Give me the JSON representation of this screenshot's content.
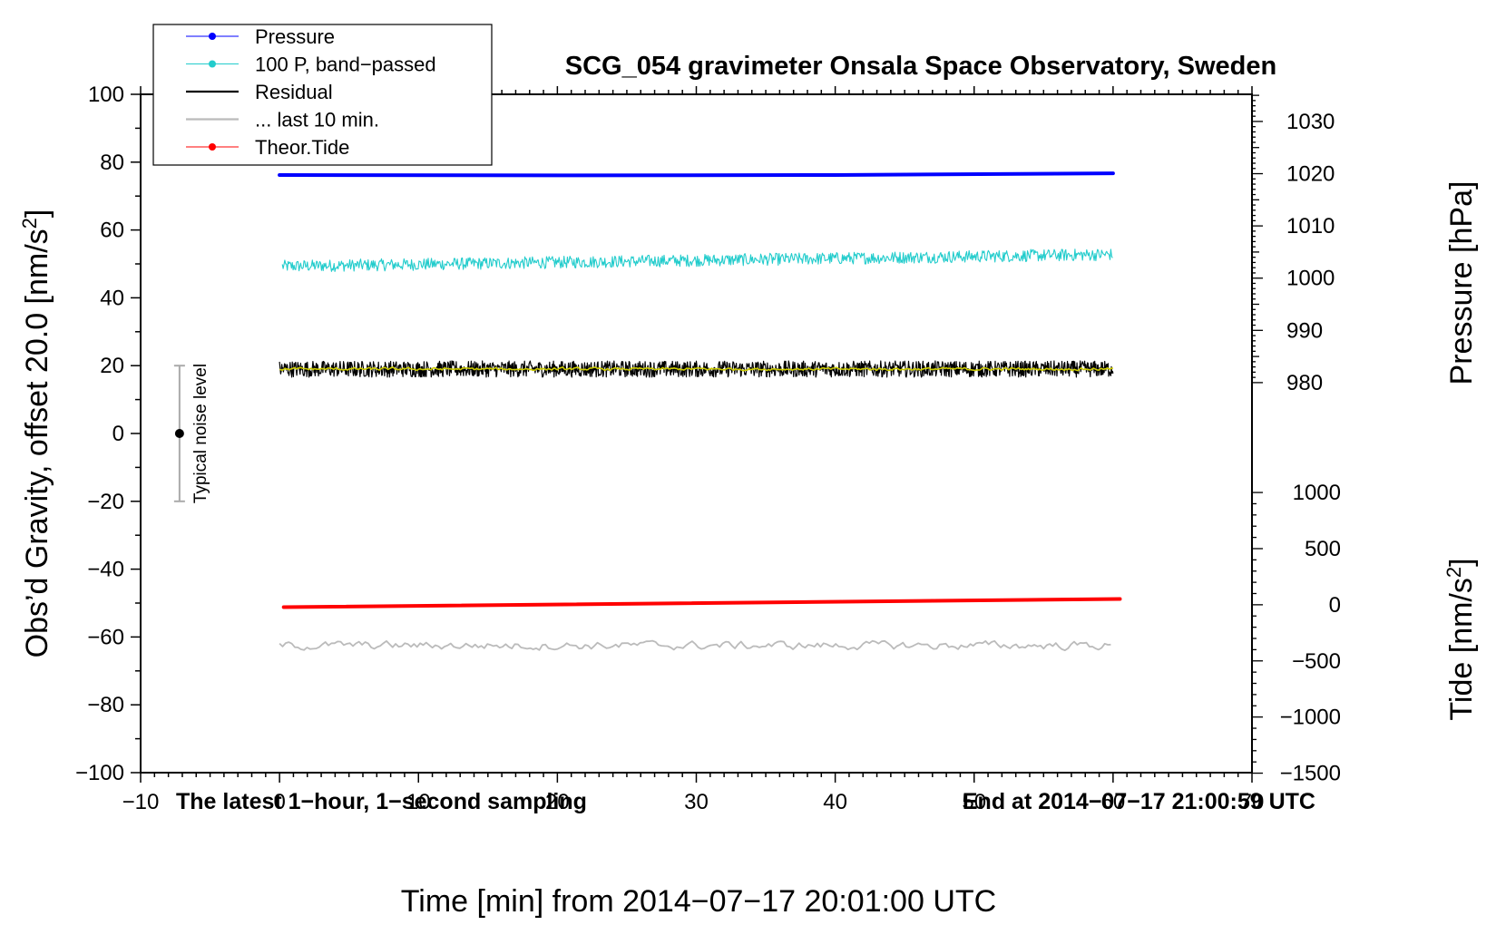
{
  "chart_data": {
    "type": "line",
    "title": "SCG_054 gravimeter Onsala Space Observatory, Sweden",
    "xlabel": "Time [min] from 2014−07−17 20:01:00 UTC",
    "ylabel_main": "Obs’d Gravity, offset 20.0 [nm/s",
    "ylabel_main_sup": "2",
    "ylabel_main_end": "]",
    "ylabel_pressure": "Pressure [hPa]",
    "ylabel_tide": "Tide [nm/s",
    "ylabel_tide_sup": "2",
    "ylabel_tide_end": "]",
    "xlim": [
      -10,
      70
    ],
    "ylim": [
      -100,
      100
    ],
    "x_ticks": [
      -10,
      0,
      10,
      20,
      30,
      40,
      50,
      60,
      70
    ],
    "x_tick_labels": [
      "−10",
      "0",
      "10",
      "20",
      "30",
      "40",
      "50",
      "60",
      "70"
    ],
    "y_ticks": [
      100,
      80,
      60,
      40,
      20,
      0,
      -20,
      -40,
      -60,
      -80,
      -100
    ],
    "y_tick_labels": [
      "100",
      "80",
      "60",
      "40",
      "20",
      "0",
      "−20",
      "−40",
      "−60",
      "−80",
      "−100"
    ],
    "pressure_axis": {
      "ticks": [
        1030,
        1020,
        1010,
        1000,
        990,
        980
      ],
      "tick_labels": [
        "1030",
        "1020",
        "1010",
        "1000",
        "990",
        "980"
      ],
      "gravity_at_1030": 92,
      "gravity_per_hpa": 1.54
    },
    "tide_axis": {
      "ticks": [
        1000,
        500,
        0,
        -500,
        -1000,
        -1500
      ],
      "tick_labels": [
        "1000",
        "500",
        "0",
        "−500",
        "−1000",
        "−1500"
      ],
      "gravity_at_zero": -50.5,
      "gravity_per_unit": 0.0331
    },
    "legend": {
      "position": "top-left",
      "entries": [
        {
          "label": "Pressure",
          "color": "#0000ff",
          "marker": true
        },
        {
          "label": "100 P, band−passed",
          "color": "#22cccc",
          "marker": true
        },
        {
          "label": "Residual",
          "color": "#000000",
          "marker": false
        },
        {
          "label": "... last 10 min.",
          "color": "#bbbbbb",
          "marker": false
        },
        {
          "label": "Theor.Tide",
          "color": "#ff0000",
          "marker": true
        }
      ]
    },
    "annotations": {
      "bottom_left": "The latest 1−hour, 1−second sampling",
      "bottom_right": "End at 2014−07−17 21:00:59 UTC",
      "noise_label": "Typical noise level"
    },
    "noise_bar": {
      "x": -7.2,
      "center": 0,
      "low": -20,
      "high": 20
    },
    "series": [
      {
        "name": "Pressure",
        "color": "#0000ff",
        "x": [
          0,
          20,
          40,
          60
        ],
        "y": [
          76.2,
          76.1,
          76.2,
          76.7
        ]
      },
      {
        "name": "100 P, band−passed",
        "color": "#22cccc",
        "x_start": 0.2,
        "x_end": 60,
        "baseline_start": 49.3,
        "baseline_end": 52.8,
        "noise_amplitude": 1.8
      },
      {
        "name": "Residual",
        "color": "#000000",
        "x_start": 0,
        "x_end": 60,
        "baseline": 19,
        "noise_amplitude": 2.4
      },
      {
        "name": "Residual (smoothed)",
        "color": "#cccc00",
        "x_start": 0,
        "x_end": 60,
        "baseline": 19,
        "noise_amplitude": 0.7
      },
      {
        "name": "... last 10 min.",
        "color": "#bbbbbb",
        "x_start": 0,
        "x_end": 60,
        "baseline": -62.5,
        "noise_amplitude": 2.2
      },
      {
        "name": "Theor.Tide",
        "color": "#ff0000",
        "x": [
          0.3,
          60.5
        ],
        "y": [
          -51.2,
          -48.8
        ]
      }
    ],
    "grid": false
  }
}
